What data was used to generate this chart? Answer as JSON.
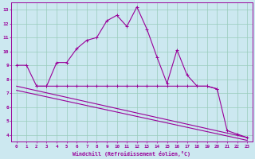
{
  "xlabel": "Windchill (Refroidissement éolien,°C)",
  "background_color": "#cce8f0",
  "grid_color": "#99ccbb",
  "line_color": "#990099",
  "spine_color": "#990099",
  "xlim": [
    -0.5,
    23.5
  ],
  "ylim": [
    3.5,
    13.5
  ],
  "yticks": [
    4,
    5,
    6,
    7,
    8,
    9,
    10,
    11,
    12,
    13
  ],
  "xticks": [
    0,
    1,
    2,
    3,
    4,
    5,
    6,
    7,
    8,
    9,
    10,
    11,
    12,
    13,
    14,
    15,
    16,
    17,
    18,
    19,
    20,
    21,
    22,
    23
  ],
  "series1_x": [
    0,
    1,
    2,
    3,
    4,
    5,
    6,
    7,
    8,
    9,
    10,
    11,
    12,
    13,
    14,
    15,
    16,
    17,
    18,
    19,
    20,
    21,
    22,
    23
  ],
  "series1_y": [
    9.0,
    9.0,
    7.5,
    7.5,
    9.2,
    9.2,
    10.2,
    10.8,
    11.0,
    12.2,
    12.6,
    11.8,
    13.2,
    11.6,
    9.6,
    7.7,
    10.1,
    8.3,
    7.5,
    7.5,
    7.3,
    4.3,
    4.05,
    3.8
  ],
  "series2_x": [
    2,
    3,
    4,
    5,
    6,
    7,
    8,
    9,
    10,
    11,
    12,
    13,
    14,
    15,
    16,
    17,
    18,
    19,
    20
  ],
  "series2_y": [
    7.5,
    7.5,
    7.5,
    7.5,
    7.5,
    7.5,
    7.5,
    7.5,
    7.5,
    7.5,
    7.5,
    7.5,
    7.5,
    7.5,
    7.5,
    7.5,
    7.5,
    7.5,
    7.3
  ],
  "series3_x": [
    0,
    23
  ],
  "series3_y": [
    7.5,
    3.8
  ],
  "series4_x": [
    0,
    23
  ],
  "series4_y": [
    7.2,
    3.6
  ]
}
